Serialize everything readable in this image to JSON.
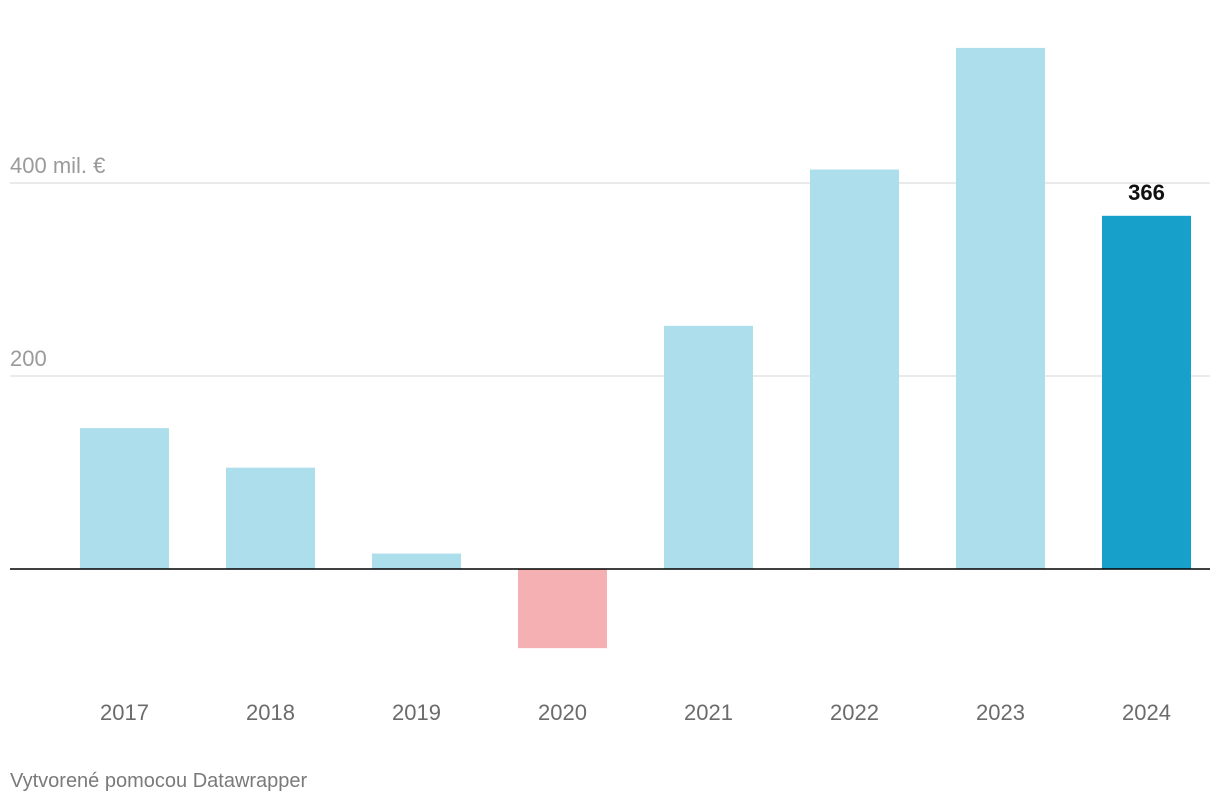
{
  "chart_data": {
    "type": "bar",
    "categories": [
      "2017",
      "2018",
      "2019",
      "2020",
      "2021",
      "2022",
      "2023",
      "2024"
    ],
    "values": [
      146,
      105,
      16,
      -82,
      252,
      414,
      540,
      366
    ],
    "y_ticks": [
      {
        "value": 400,
        "label": "400 mil. €"
      },
      {
        "value": 200,
        "label": "200"
      }
    ],
    "ylim": [
      -82,
      540
    ],
    "grid": true,
    "highlight": {
      "category": "2024",
      "label": "366"
    },
    "colors": {
      "positive": "#addeec",
      "negative": "#f4b0b3",
      "highlight": "#17a0ca"
    }
  },
  "footer": {
    "credit": "Vytvorené pomocou Datawrapper"
  }
}
